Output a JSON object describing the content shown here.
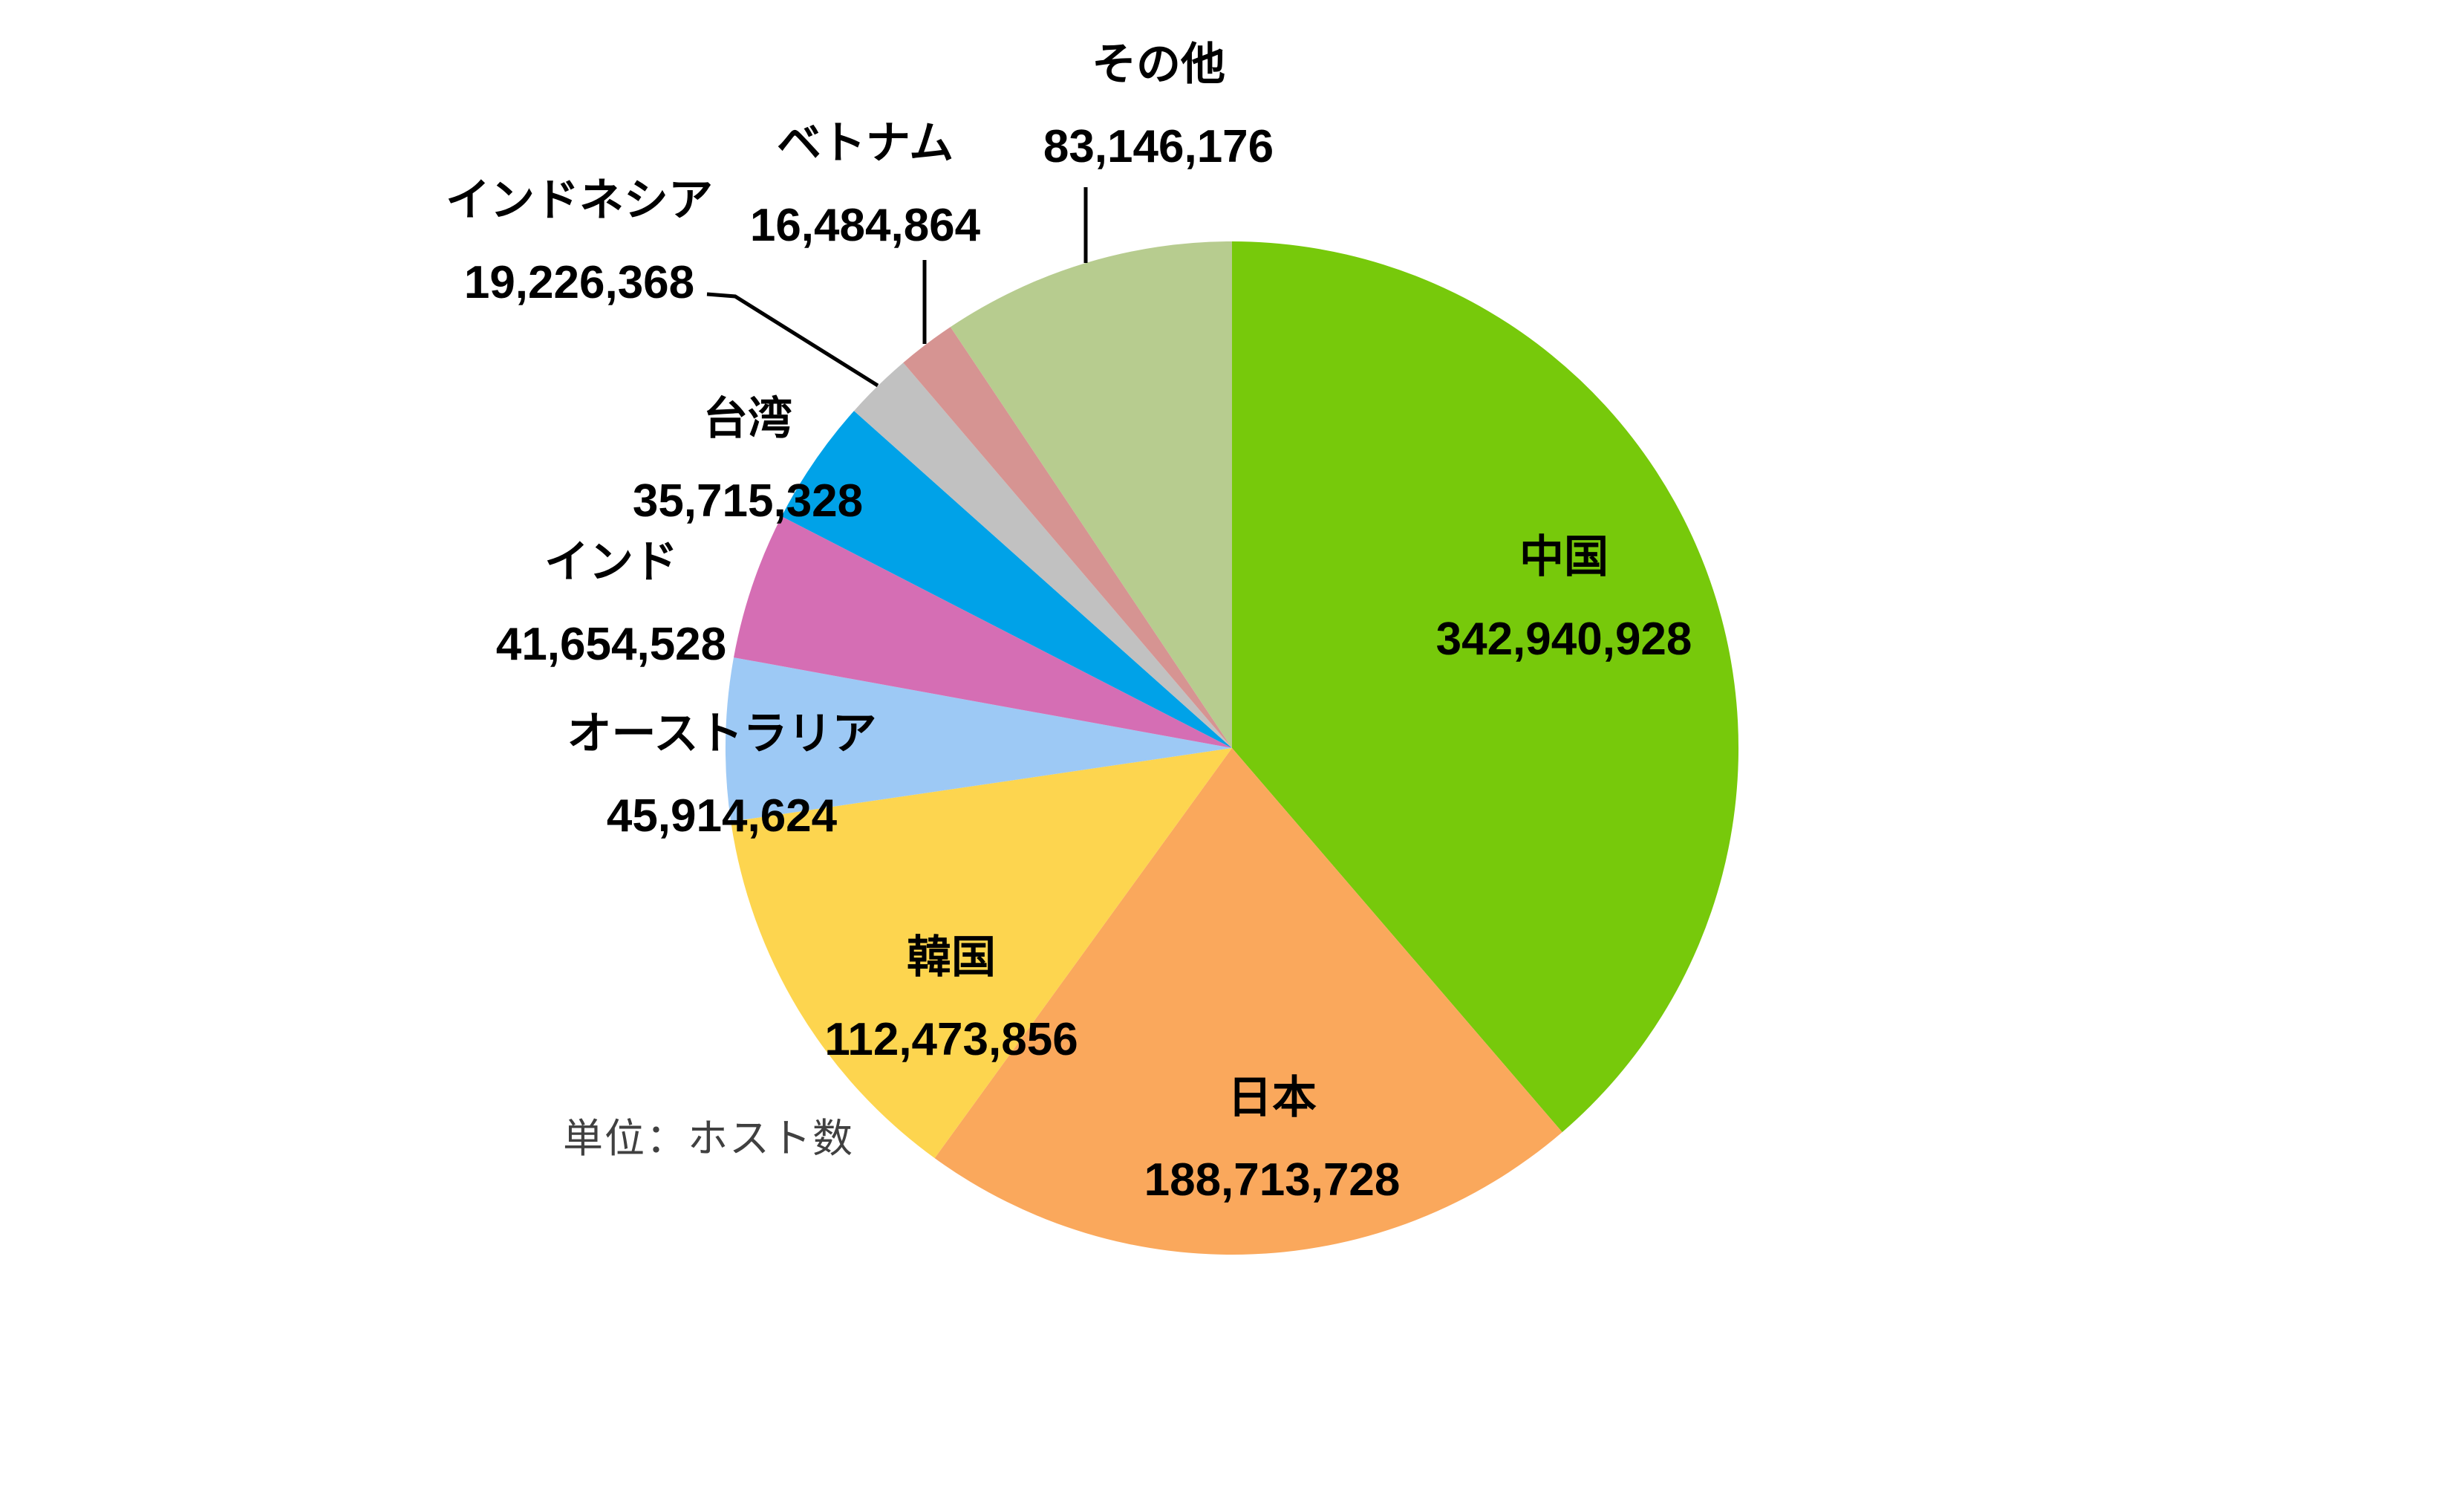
{
  "chart_data": {
    "type": "pie",
    "title": "",
    "unit_note": "単位：ホスト数",
    "start_angle_deg": 0,
    "direction": "clockwise",
    "legend": "none",
    "slices": [
      {
        "label": "中国",
        "value": 342940928,
        "value_text": "342,940,928",
        "color": "#77C90B",
        "label_position": "inside"
      },
      {
        "label": "日本",
        "value": 188713728,
        "value_text": "188,713,728",
        "color": "#FAA85C",
        "label_position": "inside"
      },
      {
        "label": "韓国",
        "value": 112473856,
        "value_text": "112,473,856",
        "color": "#FDD54F",
        "label_position": "inside"
      },
      {
        "label": "オーストラリア",
        "value": 45914624,
        "value_text": "45,914,624",
        "color": "#9DC9F5",
        "label_position": "outside"
      },
      {
        "label": "インド",
        "value": 41654528,
        "value_text": "41,654,528",
        "color": "#D56EB4",
        "label_position": "outside"
      },
      {
        "label": "台湾",
        "value": 35715328,
        "value_text": "35,715,328",
        "color": "#00A2E8",
        "label_position": "outside"
      },
      {
        "label": "インドネシア",
        "value": 19226368,
        "value_text": "19,226,368",
        "color": "#C1C1C1",
        "label_position": "outside-with-leader"
      },
      {
        "label": "ベトナム",
        "value": 16484864,
        "value_text": "16,484,864",
        "color": "#D69492",
        "label_position": "outside-with-leader"
      },
      {
        "label": "その他",
        "value": 83146176,
        "value_text": "83,146,176",
        "color": "#B7CC8F",
        "label_position": "outside-with-leader"
      }
    ]
  }
}
